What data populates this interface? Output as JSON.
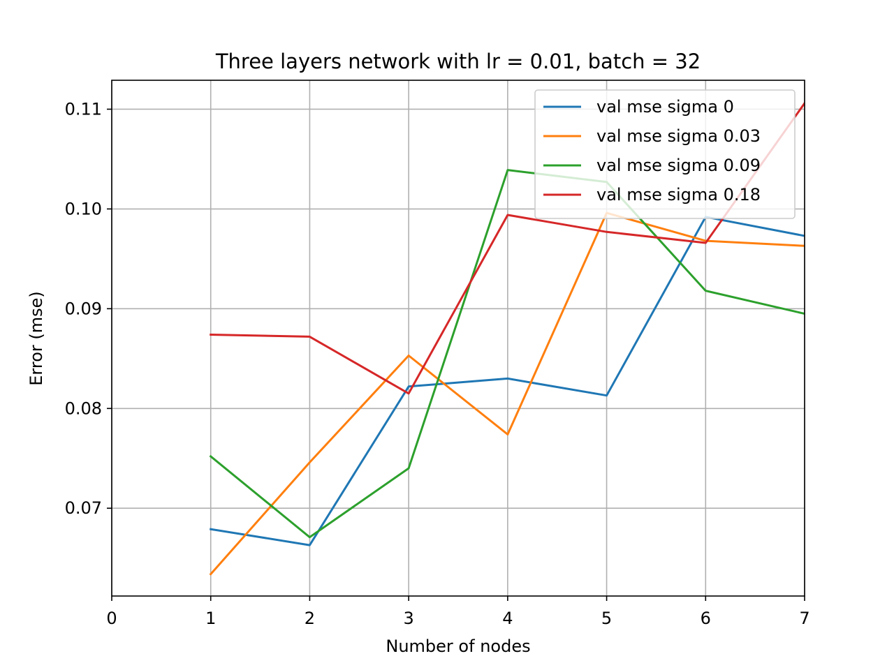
{
  "chart_data": {
    "type": "line",
    "title": "Three layers network with lr = 0.01, batch = 32",
    "xlabel": "Number of nodes",
    "ylabel": "Error (mse)",
    "xlim": [
      0,
      7
    ],
    "ylim": [
      0.0612,
      0.1129
    ],
    "x_ticks": [
      0,
      1,
      2,
      3,
      4,
      5,
      6,
      7
    ],
    "x_tick_labels": [
      "0",
      "1",
      "2",
      "3",
      "4",
      "5",
      "6",
      "7"
    ],
    "y_ticks": [
      0.07,
      0.08,
      0.09,
      0.1,
      0.11
    ],
    "y_tick_labels": [
      "0.07",
      "0.08",
      "0.09",
      "0.10",
      "0.11"
    ],
    "grid": true,
    "legend_position": "top-right",
    "x": [
      1,
      2,
      3,
      4,
      5,
      6,
      7
    ],
    "series": [
      {
        "name": "val mse sigma 0",
        "color": "#1f77b4",
        "values": [
          0.0679,
          0.0663,
          0.0822,
          0.083,
          0.0813,
          0.0992,
          0.0973
        ]
      },
      {
        "name": "val mse sigma 0.03",
        "color": "#ff7f0e",
        "values": [
          0.0634,
          0.0746,
          0.0853,
          0.0774,
          0.0996,
          0.0968,
          0.0963
        ]
      },
      {
        "name": "val mse sigma 0.09",
        "color": "#2ca02c",
        "values": [
          0.0752,
          0.0671,
          0.074,
          0.1039,
          0.1027,
          0.0918,
          0.0895
        ]
      },
      {
        "name": "val mse sigma 0.18",
        "color": "#d62728",
        "values": [
          0.0874,
          0.0872,
          0.0815,
          0.0994,
          0.0977,
          0.0966,
          0.1106
        ]
      }
    ]
  }
}
